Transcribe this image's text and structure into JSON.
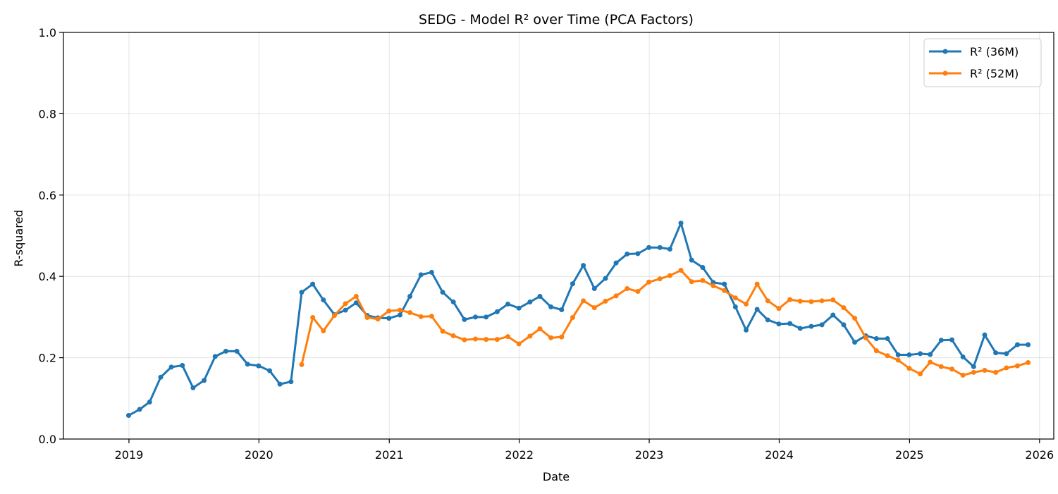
{
  "chart_data": {
    "type": "line",
    "title": "SEDG - Model R² over Time (PCA Factors)",
    "xlabel": "Date",
    "ylabel": "R-squared",
    "ylim": [
      0,
      1.0
    ],
    "xlim": [
      "2018-07-01",
      "2026-02-10"
    ],
    "grid": true,
    "legend_position": "top-right",
    "x_ticks": [
      "2019",
      "2020",
      "2021",
      "2022",
      "2023",
      "2024",
      "2025",
      "2026"
    ],
    "y_ticks": [
      "0.0",
      "0.2",
      "0.4",
      "0.6",
      "0.8",
      "1.0"
    ],
    "series": [
      {
        "name": "R² (36M)",
        "color": "#1f77b4",
        "x": [
          "2018-12",
          "2019-01",
          "2019-02",
          "2019-03",
          "2019-04",
          "2019-05",
          "2019-06",
          "2019-07",
          "2019-08",
          "2019-09",
          "2019-10",
          "2019-11",
          "2019-12",
          "2020-01",
          "2020-02",
          "2020-03",
          "2020-04",
          "2020-05",
          "2020-06",
          "2020-07",
          "2020-08",
          "2020-09",
          "2020-10",
          "2020-11",
          "2020-12",
          "2021-01",
          "2021-02",
          "2021-03",
          "2021-04",
          "2021-05",
          "2021-06",
          "2021-07",
          "2021-08",
          "2021-09",
          "2021-10",
          "2021-11",
          "2021-12",
          "2022-01",
          "2022-02",
          "2022-03",
          "2022-04",
          "2022-05",
          "2022-06",
          "2022-07",
          "2022-08",
          "2022-09",
          "2022-10",
          "2022-11",
          "2022-12",
          "2023-01",
          "2023-02",
          "2023-03",
          "2023-04",
          "2023-05",
          "2023-06",
          "2023-07",
          "2023-08",
          "2023-09",
          "2023-10",
          "2023-11",
          "2023-12",
          "2024-01",
          "2024-02",
          "2024-03",
          "2024-04",
          "2024-05",
          "2024-06",
          "2024-07",
          "2024-08",
          "2024-09",
          "2024-10",
          "2024-11",
          "2024-12",
          "2025-01",
          "2025-02",
          "2025-03",
          "2025-04",
          "2025-05",
          "2025-06",
          "2025-07",
          "2025-08",
          "2025-09",
          "2025-10",
          "2025-11"
        ],
        "values": [
          0.058,
          0.073,
          0.091,
          0.152,
          0.177,
          0.181,
          0.126,
          0.144,
          0.203,
          0.216,
          0.216,
          0.184,
          0.18,
          0.168,
          0.135,
          0.141,
          0.361,
          0.381,
          0.342,
          0.306,
          0.317,
          0.335,
          0.304,
          0.298,
          0.297,
          0.305,
          0.351,
          0.404,
          0.41,
          0.361,
          0.337,
          0.294,
          0.3,
          0.3,
          0.313,
          0.332,
          0.322,
          0.337,
          0.351,
          0.325,
          0.318,
          0.382,
          0.427,
          0.37,
          0.395,
          0.433,
          0.455,
          0.456,
          0.471,
          0.471,
          0.467,
          0.531,
          0.44,
          0.422,
          0.385,
          0.381,
          0.325,
          0.268,
          0.319,
          0.293,
          0.283,
          0.284,
          0.272,
          0.277,
          0.281,
          0.305,
          0.281,
          0.238,
          0.254,
          0.247,
          0.247,
          0.207,
          0.207,
          0.21,
          0.208,
          0.243,
          0.244,
          0.202,
          0.178,
          0.256,
          0.212,
          0.21,
          0.232,
          0.232
        ]
      },
      {
        "name": "R² (52M)",
        "color": "#ff7f0e",
        "x": [
          "2020-04",
          "2020-05",
          "2020-06",
          "2020-07",
          "2020-08",
          "2020-09",
          "2020-10",
          "2020-11",
          "2020-12",
          "2021-01",
          "2021-02",
          "2021-03",
          "2021-04",
          "2021-05",
          "2021-06",
          "2021-07",
          "2021-08",
          "2021-09",
          "2021-10",
          "2021-11",
          "2021-12",
          "2022-01",
          "2022-02",
          "2022-03",
          "2022-04",
          "2022-05",
          "2022-06",
          "2022-07",
          "2022-08",
          "2022-09",
          "2022-10",
          "2022-11",
          "2022-12",
          "2023-01",
          "2023-02",
          "2023-03",
          "2023-04",
          "2023-05",
          "2023-06",
          "2023-07",
          "2023-08",
          "2023-09",
          "2023-10",
          "2023-11",
          "2023-12",
          "2024-01",
          "2024-02",
          "2024-03",
          "2024-04",
          "2024-05",
          "2024-06",
          "2024-07",
          "2024-08",
          "2024-09",
          "2024-10",
          "2024-11",
          "2024-12",
          "2025-01",
          "2025-02",
          "2025-03",
          "2025-04",
          "2025-05",
          "2025-06",
          "2025-07",
          "2025-08",
          "2025-09",
          "2025-10",
          "2025-11"
        ],
        "values": [
          0.183,
          0.299,
          0.266,
          0.304,
          0.333,
          0.351,
          0.299,
          0.295,
          0.315,
          0.317,
          0.311,
          0.301,
          0.302,
          0.265,
          0.254,
          0.244,
          0.246,
          0.245,
          0.245,
          0.252,
          0.234,
          0.253,
          0.271,
          0.249,
          0.251,
          0.299,
          0.34,
          0.323,
          0.339,
          0.352,
          0.37,
          0.363,
          0.386,
          0.394,
          0.402,
          0.415,
          0.387,
          0.39,
          0.377,
          0.365,
          0.347,
          0.332,
          0.381,
          0.34,
          0.321,
          0.343,
          0.339,
          0.338,
          0.34,
          0.342,
          0.323,
          0.297,
          0.249,
          0.217,
          0.205,
          0.194,
          0.174,
          0.16,
          0.189,
          0.178,
          0.172,
          0.157,
          0.164,
          0.169,
          0.164,
          0.175,
          0.18,
          0.188
        ]
      }
    ]
  }
}
